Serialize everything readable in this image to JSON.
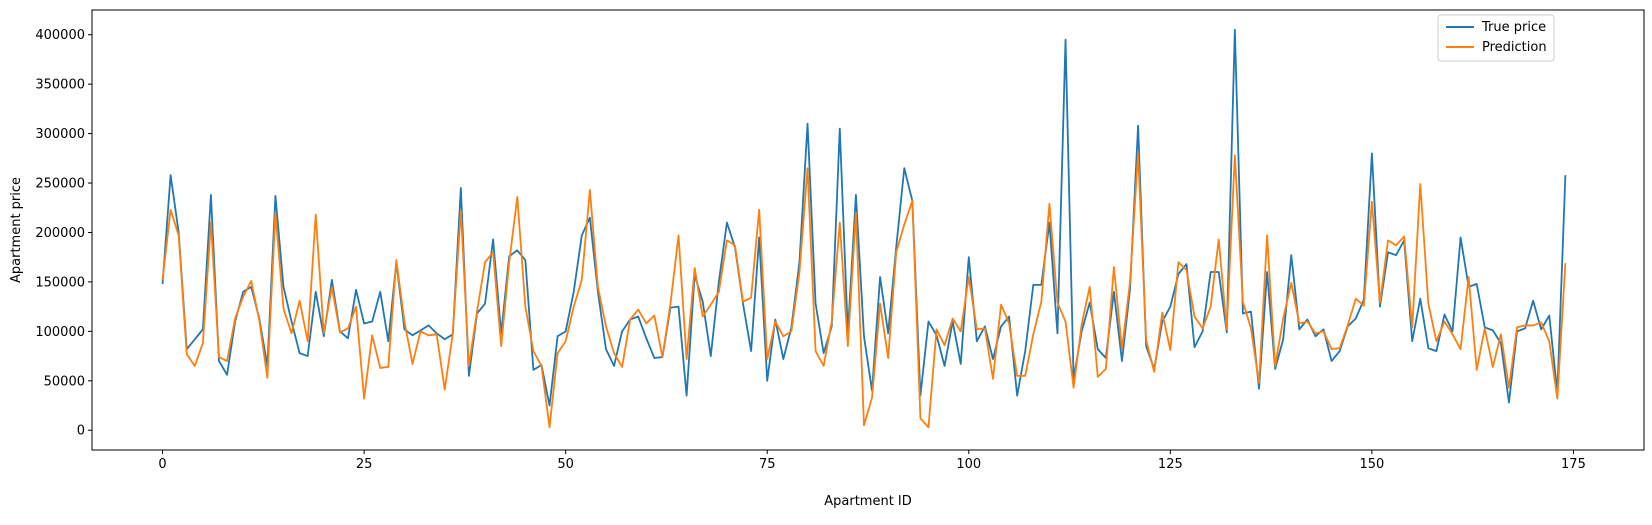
{
  "chart_data": {
    "type": "line",
    "title": "",
    "xlabel": "Apartment ID",
    "ylabel": "Apartment price",
    "xlim": [
      -8.75,
      183.75
    ],
    "ylim": [
      -20000,
      425000
    ],
    "xticks": [
      0,
      25,
      50,
      75,
      100,
      125,
      150,
      175
    ],
    "yticks": [
      0,
      50000,
      100000,
      150000,
      200000,
      250000,
      300000,
      350000,
      400000
    ],
    "grid": false,
    "legend_position": "top-right",
    "x": [
      0,
      1,
      2,
      3,
      4,
      5,
      6,
      7,
      8,
      9,
      10,
      11,
      12,
      13,
      14,
      15,
      16,
      17,
      18,
      19,
      20,
      21,
      22,
      23,
      24,
      25,
      26,
      27,
      28,
      29,
      30,
      31,
      32,
      33,
      34,
      35,
      36,
      37,
      38,
      39,
      40,
      41,
      42,
      43,
      44,
      45,
      46,
      47,
      48,
      49,
      50,
      51,
      52,
      53,
      54,
      55,
      56,
      57,
      58,
      59,
      60,
      61,
      62,
      63,
      64,
      65,
      66,
      67,
      68,
      69,
      70,
      71,
      72,
      73,
      74,
      75,
      76,
      77,
      78,
      79,
      80,
      81,
      82,
      83,
      84,
      85,
      86,
      87,
      88,
      89,
      90,
      91,
      92,
      93,
      94,
      95,
      96,
      97,
      98,
      99,
      100,
      101,
      102,
      103,
      104,
      105,
      106,
      107,
      108,
      109,
      110,
      111,
      112,
      113,
      114,
      115,
      116,
      117,
      118,
      119,
      120,
      121,
      122,
      123,
      124,
      125,
      126,
      127,
      128,
      129,
      130,
      131,
      132,
      133,
      134,
      135,
      136,
      137,
      138,
      139,
      140,
      141,
      142,
      143,
      144,
      145,
      146,
      147,
      148,
      149,
      150,
      151,
      152,
      153,
      154,
      155,
      156,
      157,
      158,
      159,
      160,
      161,
      162,
      163,
      164,
      165,
      166,
      167,
      168,
      169,
      170,
      171,
      172,
      173,
      174
    ],
    "series": [
      {
        "name": "True price",
        "color": "#1f77b4",
        "values": [
          148000,
          258000,
          200000,
          82000,
          92000,
          102000,
          238000,
          70000,
          56000,
          110000,
          140000,
          145000,
          113000,
          65000,
          237000,
          145000,
          110000,
          78000,
          75000,
          140000,
          95000,
          152000,
          100000,
          93000,
          142000,
          108000,
          110000,
          140000,
          90000,
          170000,
          102000,
          96000,
          101000,
          106000,
          98000,
          92000,
          97000,
          245000,
          55000,
          118000,
          128000,
          193000,
          98000,
          176000,
          182000,
          172000,
          61000,
          66000,
          25000,
          95000,
          100000,
          140000,
          197000,
          215000,
          140000,
          82000,
          65000,
          100000,
          112000,
          115000,
          93000,
          73000,
          74000,
          124000,
          125000,
          35000,
          157000,
          130000,
          75000,
          150000,
          210000,
          185000,
          128000,
          80000,
          195000,
          50000,
          112000,
          72000,
          104000,
          170000,
          310000,
          128000,
          78000,
          105000,
          305000,
          98000,
          238000,
          95000,
          40000,
          155000,
          98000,
          185000,
          265000,
          232000,
          35000,
          110000,
          96000,
          65000,
          110000,
          67000,
          175000,
          90000,
          105000,
          72000,
          105000,
          115000,
          35000,
          80000,
          147000,
          147000,
          210000,
          98000,
          395000,
          52000,
          100000,
          129000,
          82000,
          73000,
          140000,
          70000,
          143000,
          308000,
          85000,
          62000,
          110000,
          125000,
          158000,
          168000,
          84000,
          100000,
          160000,
          160000,
          99000,
          405000,
          118000,
          120000,
          42000,
          160000,
          62000,
          92000,
          177000,
          102000,
          112000,
          95000,
          102000,
          70000,
          80000,
          105000,
          113000,
          132000,
          280000,
          125000,
          180000,
          177000,
          192000,
          90000,
          133000,
          83000,
          80000,
          117000,
          100000,
          195000,
          145000,
          148000,
          104000,
          101000,
          88000,
          28000,
          100000,
          103000,
          131000,
          102000,
          116000,
          38000,
          258000
        ]
      },
      {
        "name": "Prediction",
        "color": "#ff7f0e",
        "values": [
          152000,
          223000,
          197000,
          77000,
          65000,
          88000,
          210000,
          74000,
          70000,
          113000,
          135000,
          151000,
          111000,
          53000,
          220000,
          123000,
          98000,
          131000,
          90000,
          218000,
          98000,
          145000,
          99000,
          103000,
          125000,
          32000,
          96000,
          63000,
          64000,
          172000,
          110000,
          67000,
          100000,
          96000,
          97000,
          41000,
          98000,
          222000,
          65000,
          120000,
          170000,
          180000,
          85000,
          170000,
          236000,
          125000,
          80000,
          65000,
          3000,
          78000,
          90000,
          125000,
          152000,
          243000,
          145000,
          105000,
          78000,
          64000,
          112000,
          122000,
          108000,
          116000,
          74000,
          128000,
          197000,
          72000,
          164000,
          115000,
          127000,
          140000,
          192000,
          187000,
          130000,
          134000,
          223000,
          72000,
          110000,
          95000,
          100000,
          160000,
          265000,
          80000,
          65000,
          110000,
          210000,
          85000,
          220000,
          5000,
          33000,
          128000,
          73000,
          180000,
          208000,
          232000,
          12000,
          3000,
          102000,
          86000,
          113000,
          100000,
          155000,
          102000,
          103000,
          52000,
          127000,
          108000,
          55000,
          55000,
          97000,
          130000,
          229000,
          129000,
          110000,
          43000,
          107000,
          145000,
          54000,
          62000,
          165000,
          82000,
          150000,
          280000,
          91000,
          59000,
          119000,
          81000,
          170000,
          162000,
          115000,
          103000,
          125000,
          193000,
          102000,
          278000,
          130000,
          103000,
          48000,
          197000,
          65000,
          113000,
          149000,
          108000,
          110000,
          98000,
          100000,
          82000,
          83000,
          106000,
          133000,
          126000,
          231000,
          129000,
          192000,
          187000,
          196000,
          104000,
          249000,
          128000,
          90000,
          110000,
          97000,
          82000,
          155000,
          61000,
          103000,
          64000,
          97000,
          43000,
          104000,
          106000,
          106000,
          109000,
          90000,
          32000,
          169000
        ]
      }
    ]
  }
}
